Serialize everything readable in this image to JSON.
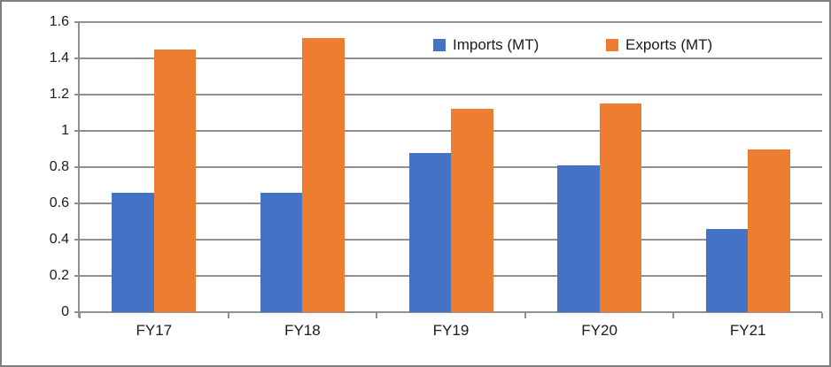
{
  "chart_data": {
    "type": "bar",
    "title": "",
    "xlabel": "",
    "ylabel": "",
    "categories": [
      "FY17",
      "FY18",
      "FY19",
      "FY20",
      "FY21"
    ],
    "series": [
      {
        "name": "Imports (MT)",
        "color": "#4472C4",
        "values": [
          0.66,
          0.66,
          0.88,
          0.81,
          0.46
        ]
      },
      {
        "name": "Exports (MT)",
        "color": "#ED7D31",
        "values": [
          1.45,
          1.51,
          1.12,
          1.15,
          0.9
        ]
      }
    ],
    "ylim": [
      0,
      1.6
    ],
    "ytick_step": 0.2,
    "y_tick_labels": [
      "0",
      "0.2",
      "0.4",
      "0.6",
      "0.8",
      "1",
      "1.2",
      "1.4",
      "1.6"
    ],
    "grid": true,
    "legend_position": "top-center",
    "colors": {
      "grid": "#8f8f8f",
      "axis": "#8f8f8f",
      "text": "#1a1a1a",
      "border": "#7f7f7f",
      "background": "#ffffff"
    }
  }
}
